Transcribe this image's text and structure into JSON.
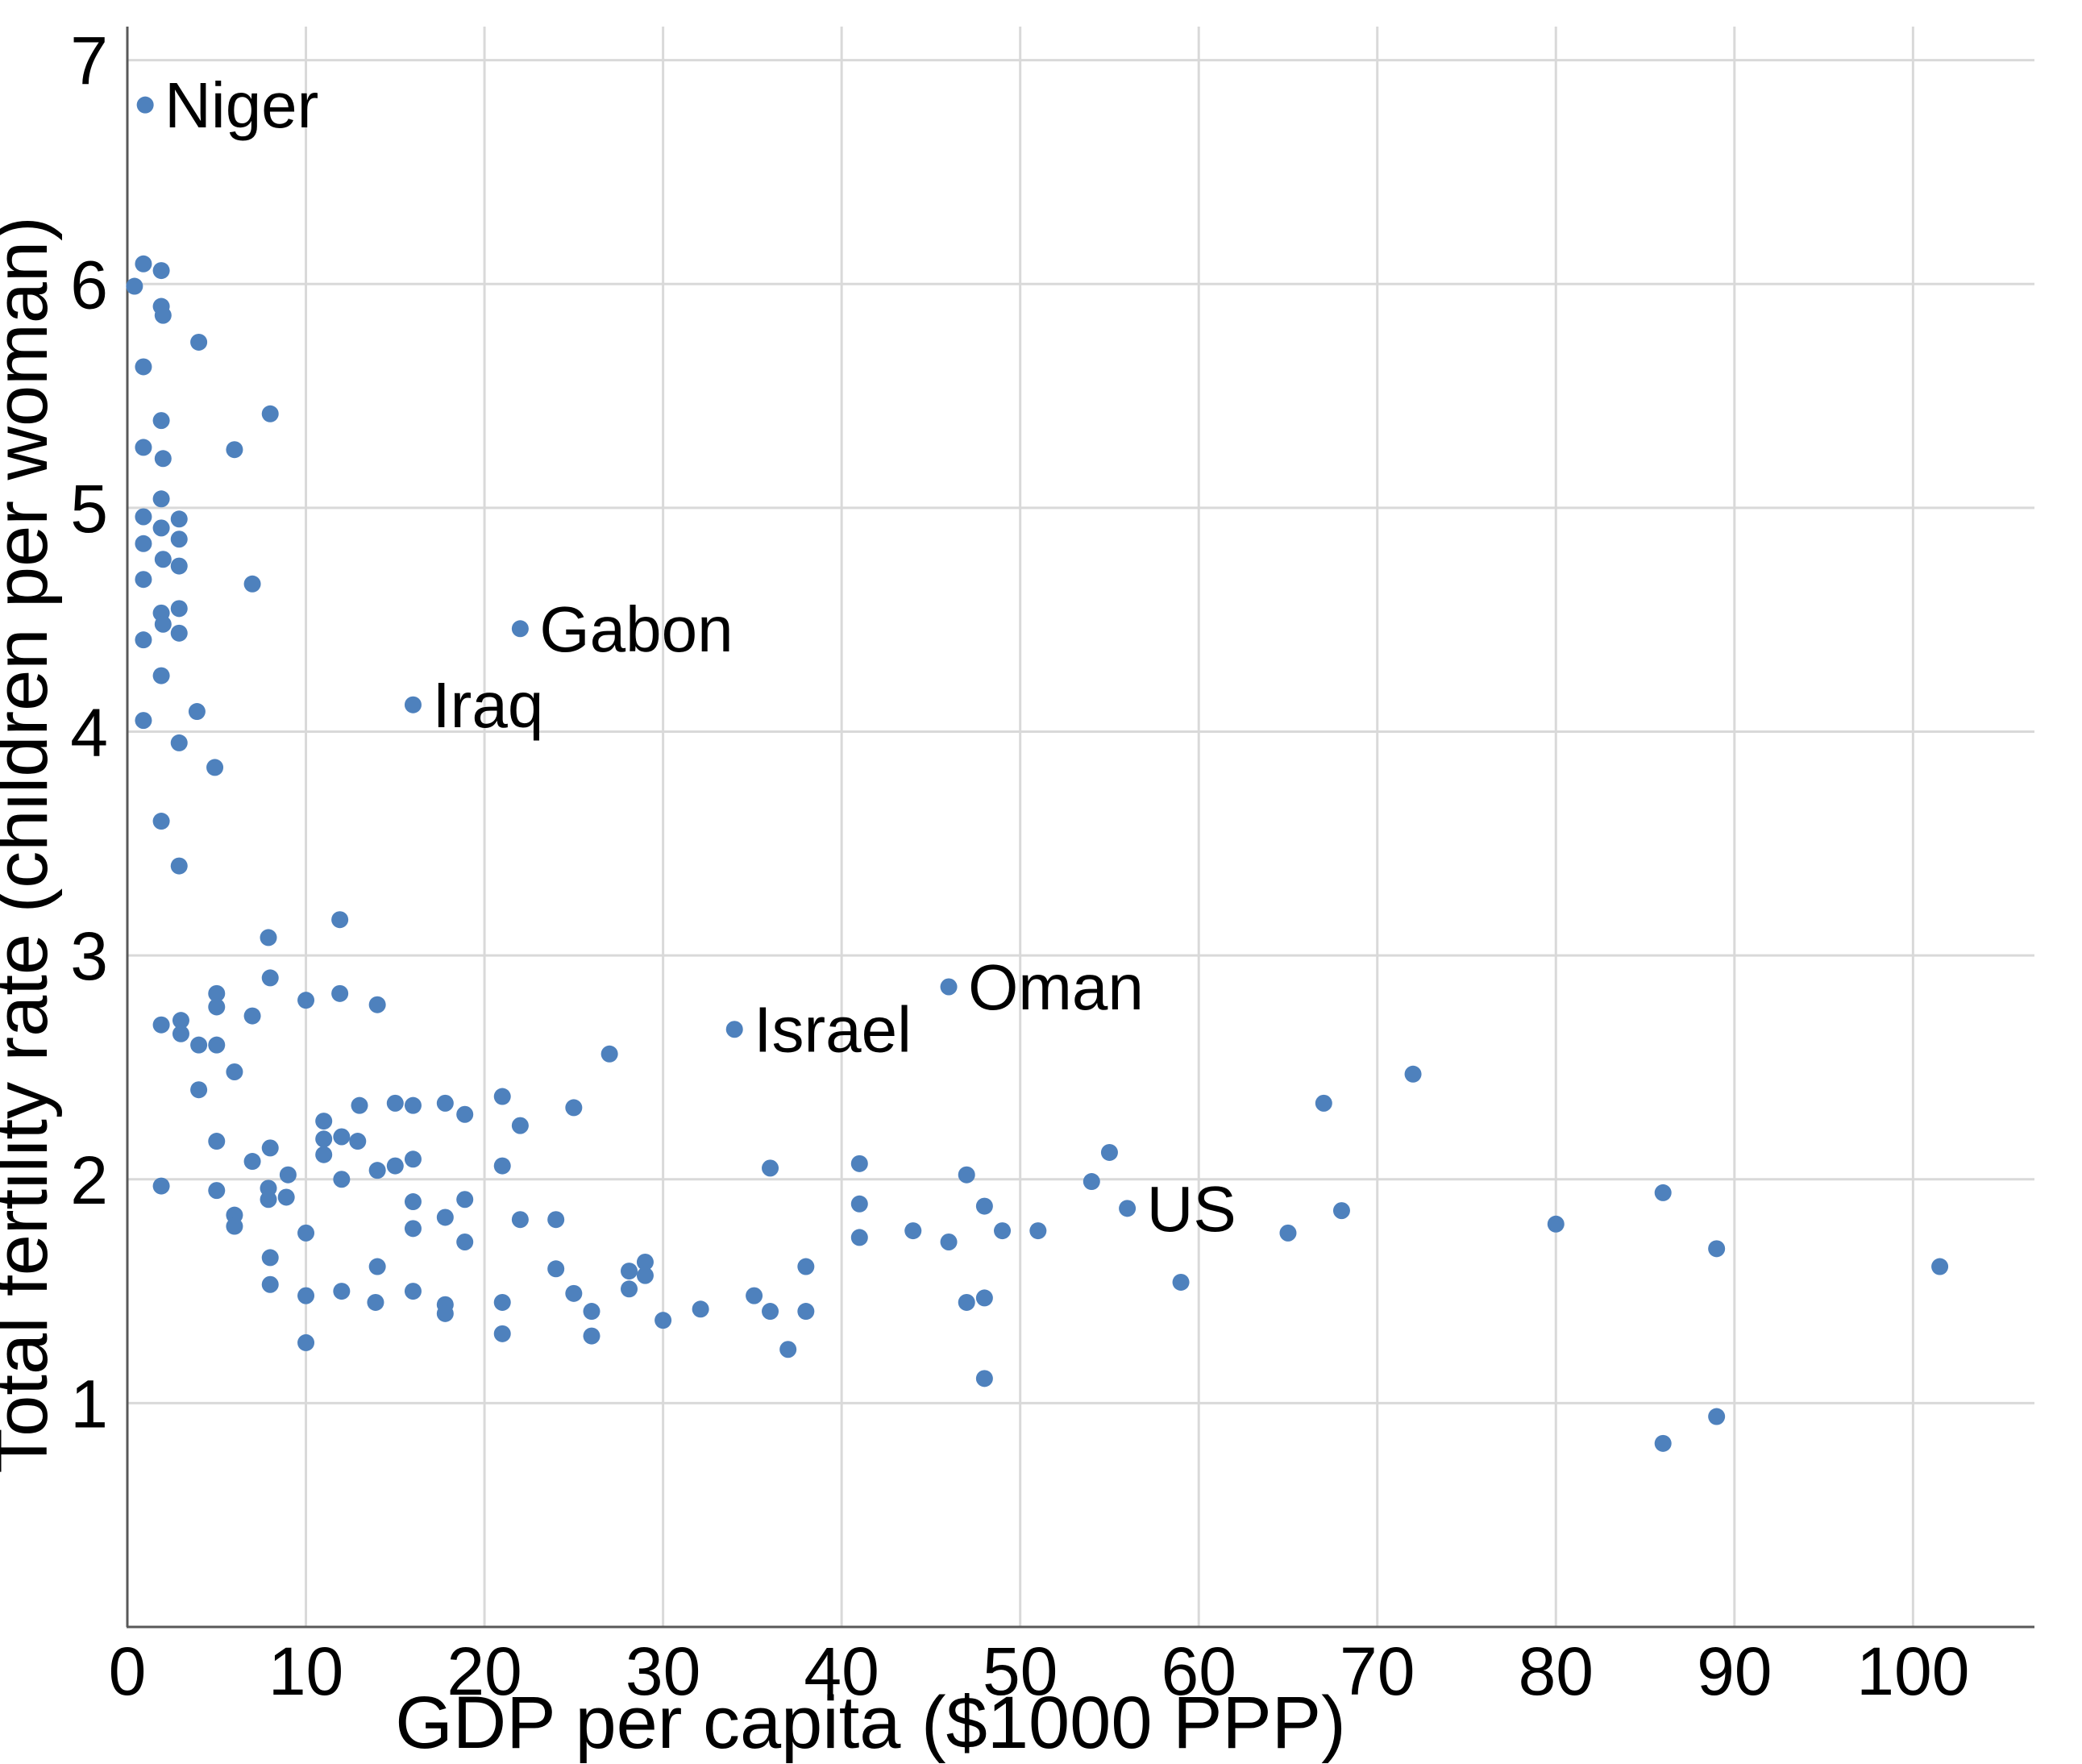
{
  "chart_data": {
    "type": "scatter",
    "title": "",
    "xlabel": "GDP per capita ($1000 PPP)",
    "ylabel": "Total fertility rate (children per woman)",
    "xlim": [
      0,
      106.8
    ],
    "ylim": [
      0,
      7.15
    ],
    "x_ticks": [
      0,
      10,
      20,
      30,
      40,
      50,
      60,
      70,
      80,
      90,
      100
    ],
    "y_ticks": [
      1,
      2,
      3,
      4,
      5,
      6,
      7
    ],
    "grid": true,
    "legend_position": "none",
    "colors": {
      "point": "#4e81bd",
      "grid": "#d9d9d9",
      "axis": "#595959",
      "text": "#000000",
      "background": "#ffffff"
    },
    "points": [
      [
        1.0,
        6.8
      ],
      [
        0.9,
        6.09
      ],
      [
        1.9,
        6.06
      ],
      [
        0.4,
        5.99
      ],
      [
        1.9,
        5.9
      ],
      [
        2.0,
        5.86
      ],
      [
        4.0,
        5.74
      ],
      [
        0.9,
        5.63
      ],
      [
        8.0,
        5.42
      ],
      [
        1.9,
        5.39
      ],
      [
        6.0,
        5.26
      ],
      [
        0.9,
        5.27
      ],
      [
        2.0,
        5.22
      ],
      [
        1.9,
        5.04
      ],
      [
        0.9,
        4.96
      ],
      [
        2.9,
        4.95
      ],
      [
        1.9,
        4.91
      ],
      [
        2.9,
        4.86
      ],
      [
        0.9,
        4.84
      ],
      [
        2.0,
        4.77
      ],
      [
        2.9,
        4.74
      ],
      [
        0.9,
        4.68
      ],
      [
        7.0,
        4.66
      ],
      [
        2.9,
        4.55
      ],
      [
        1.9,
        4.53
      ],
      [
        2.0,
        4.48
      ],
      [
        22.0,
        4.46
      ],
      [
        2.9,
        4.44
      ],
      [
        0.9,
        4.41
      ],
      [
        1.9,
        4.25
      ],
      [
        16.0,
        4.12
      ],
      [
        3.9,
        4.09
      ],
      [
        0.9,
        4.05
      ],
      [
        2.9,
        3.95
      ],
      [
        4.9,
        3.84
      ],
      [
        1.9,
        3.6
      ],
      [
        2.9,
        3.4
      ],
      [
        11.9,
        3.16
      ],
      [
        7.9,
        3.08
      ],
      [
        8.0,
        2.9
      ],
      [
        46.0,
        2.86
      ],
      [
        11.9,
        2.83
      ],
      [
        5.0,
        2.83
      ],
      [
        10.0,
        2.8
      ],
      [
        14.0,
        2.78
      ],
      [
        5.0,
        2.77
      ],
      [
        7.0,
        2.73
      ],
      [
        3.0,
        2.71
      ],
      [
        1.9,
        2.69
      ],
      [
        34.0,
        2.67
      ],
      [
        3.0,
        2.65
      ],
      [
        4.0,
        2.6
      ],
      [
        5.0,
        2.6
      ],
      [
        27.0,
        2.56
      ],
      [
        6.0,
        2.48
      ],
      [
        72.0,
        2.47
      ],
      [
        4.0,
        2.4
      ],
      [
        21.0,
        2.37
      ],
      [
        15.0,
        2.34
      ],
      [
        17.8,
        2.34
      ],
      [
        67.0,
        2.34
      ],
      [
        13.0,
        2.33
      ],
      [
        16.0,
        2.33
      ],
      [
        25.0,
        2.32
      ],
      [
        18.9,
        2.29
      ],
      [
        11.0,
        2.26
      ],
      [
        22.0,
        2.24
      ],
      [
        12.0,
        2.19
      ],
      [
        11.0,
        2.18
      ],
      [
        5.0,
        2.17
      ],
      [
        12.9,
        2.17
      ],
      [
        8.0,
        2.14
      ],
      [
        55.0,
        2.12
      ],
      [
        11.0,
        2.11
      ],
      [
        16.0,
        2.09
      ],
      [
        7.0,
        2.08
      ],
      [
        41.0,
        2.07
      ],
      [
        15.0,
        2.06
      ],
      [
        21.0,
        2.06
      ],
      [
        36.0,
        2.05
      ],
      [
        14.0,
        2.04
      ],
      [
        9.0,
        2.02
      ],
      [
        47.0,
        2.02
      ],
      [
        12.0,
        2.0
      ],
      [
        54.0,
        1.99
      ],
      [
        1.9,
        1.97
      ],
      [
        7.9,
        1.96
      ],
      [
        5.0,
        1.95
      ],
      [
        86.0,
        1.94
      ],
      [
        8.9,
        1.92
      ],
      [
        7.9,
        1.91
      ],
      [
        18.9,
        1.91
      ],
      [
        16.0,
        1.9
      ],
      [
        41.0,
        1.89
      ],
      [
        48.0,
        1.88
      ],
      [
        56.0,
        1.87
      ],
      [
        68.0,
        1.86
      ],
      [
        6.0,
        1.84
      ],
      [
        17.8,
        1.83
      ],
      [
        22.0,
        1.82
      ],
      [
        24.0,
        1.82
      ],
      [
        80.0,
        1.8
      ],
      [
        6.0,
        1.79
      ],
      [
        16.0,
        1.78
      ],
      [
        44.0,
        1.77
      ],
      [
        49.0,
        1.77
      ],
      [
        51.0,
        1.77
      ],
      [
        10.0,
        1.76
      ],
      [
        65.0,
        1.76
      ],
      [
        41.0,
        1.74
      ],
      [
        18.9,
        1.72
      ],
      [
        46.0,
        1.72
      ],
      [
        89.0,
        1.69
      ],
      [
        8.0,
        1.65
      ],
      [
        29.0,
        1.63
      ],
      [
        38.0,
        1.61
      ],
      [
        14.0,
        1.61
      ],
      [
        101.5,
        1.61
      ],
      [
        24.0,
        1.6
      ],
      [
        28.1,
        1.59
      ],
      [
        29.0,
        1.57
      ],
      [
        59.0,
        1.54
      ],
      [
        8.0,
        1.53
      ],
      [
        28.1,
        1.51
      ],
      [
        12.0,
        1.5
      ],
      [
        16.0,
        1.5
      ],
      [
        25.0,
        1.49
      ],
      [
        10.0,
        1.48
      ],
      [
        35.1,
        1.48
      ],
      [
        48.0,
        1.47
      ],
      [
        13.9,
        1.45
      ],
      [
        21.0,
        1.45
      ],
      [
        47.0,
        1.45
      ],
      [
        17.8,
        1.44
      ],
      [
        32.1,
        1.42
      ],
      [
        26.0,
        1.41
      ],
      [
        36.0,
        1.41
      ],
      [
        38.0,
        1.41
      ],
      [
        17.8,
        1.4
      ],
      [
        30.0,
        1.37
      ],
      [
        21.0,
        1.31
      ],
      [
        26.0,
        1.3
      ],
      [
        10.0,
        1.27
      ],
      [
        37.0,
        1.24
      ],
      [
        48.0,
        1.11
      ],
      [
        89.0,
        0.94
      ],
      [
        86.0,
        0.82
      ]
    ],
    "annotations": [
      {
        "label": "Niger",
        "x": 1.0,
        "y": 6.8
      },
      {
        "label": "Gabon",
        "x": 22.0,
        "y": 4.46
      },
      {
        "label": "Iraq",
        "x": 16.0,
        "y": 4.12
      },
      {
        "label": "Israel",
        "x": 34.0,
        "y": 2.67
      },
      {
        "label": "Oman",
        "x": 46.0,
        "y": 2.86
      },
      {
        "label": "US",
        "x": 56.0,
        "y": 1.87
      }
    ]
  }
}
